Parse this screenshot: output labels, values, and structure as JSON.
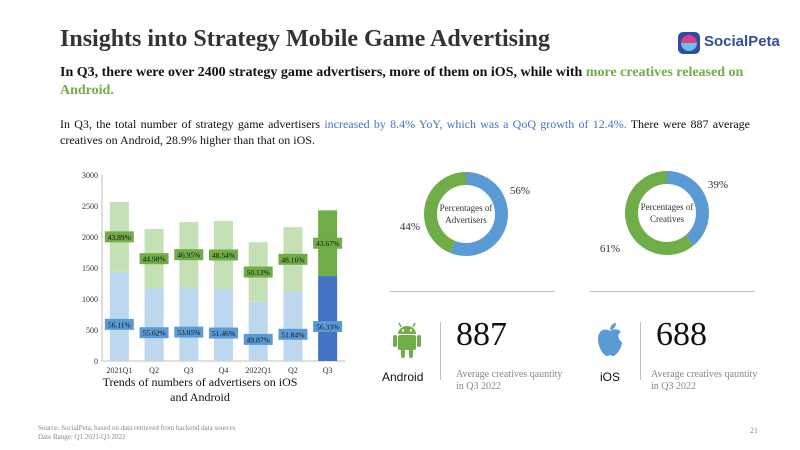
{
  "title": "Insights into Strategy Mobile Game Advertising",
  "logo": {
    "text": "SocialPeta"
  },
  "headline": {
    "part1": "In Q3, there were over 2400 strategy game advertisers, more of them on iOS, while with ",
    "highlight": "more creatives released on Android."
  },
  "body": {
    "part1": "In Q3, the total number of strategy game advertisers ",
    "highlight": "increased by 8.4% YoY, which was a QoQ growth of 12.4%.",
    "part2": " There were 887 average creatives on Android, 28.9% higher than that on iOS."
  },
  "chart_caption": "Trends of numbers of advertisers on iOS and Android",
  "chart_data": [
    {
      "type": "bar",
      "stacked": true,
      "categories": [
        "2021Q1",
        "Q2",
        "Q3",
        "Q4",
        "2022Q1",
        "Q2",
        "Q3"
      ],
      "series": [
        {
          "values": [
            1440,
            1170,
            1190,
            1160,
            955,
            1120,
            1370
          ],
          "labels": [
            "56.11%",
            "55.02%",
            "53.05%",
            "51.46%",
            "49.87%",
            "51.84%",
            "56.33%"
          ]
        },
        {
          "values": [
            1125,
            960,
            1050,
            1100,
            960,
            1040,
            1060
          ],
          "labels": [
            "43.89%",
            "44.98%",
            "46.95%",
            "48.54%",
            "50.13%",
            "48.16%",
            "43.67%"
          ]
        }
      ],
      "ylim": [
        0,
        3000
      ],
      "yticks": [
        0,
        500,
        1000,
        1500,
        2000,
        2500,
        3000
      ],
      "colors": {
        "ios_bg": "#bdd7ee",
        "ios_label_bg": "#5b9bd5",
        "android_bg": "#c5e0b4",
        "android_label_bg": "#70ad47",
        "ios_hl": "#4472c4",
        "android_hl": "#70ad47"
      }
    },
    {
      "type": "pie",
      "donut": true,
      "title": "Percentages of Advertisers",
      "slices": [
        {
          "value": 56,
          "label": "56%",
          "color": "#5b9bd5"
        },
        {
          "value": 44,
          "label": "44%",
          "color": "#70ad47"
        }
      ]
    },
    {
      "type": "pie",
      "donut": true,
      "title": "Percentages of Creatives",
      "slices": [
        {
          "value": 39,
          "label": "39%",
          "color": "#5b9bd5"
        },
        {
          "value": 61,
          "label": "61%",
          "color": "#70ad47"
        }
      ]
    }
  ],
  "android": {
    "label": "Android",
    "value": "887",
    "desc": "Average creatives qauntity in Q3 2022",
    "icon": "android-icon",
    "color": "#70ad47"
  },
  "ios": {
    "label": "iOS",
    "value": "688",
    "desc": "Average creatives qauntity in Q3 2022",
    "icon": "apple-icon",
    "color": "#5b9bd5"
  },
  "source": {
    "line1": "Source: SocialPeta, based on data retrieved from backend data sources",
    "line2": "Date Range: Q1 2021-Q3 2022"
  },
  "page_number": "21"
}
